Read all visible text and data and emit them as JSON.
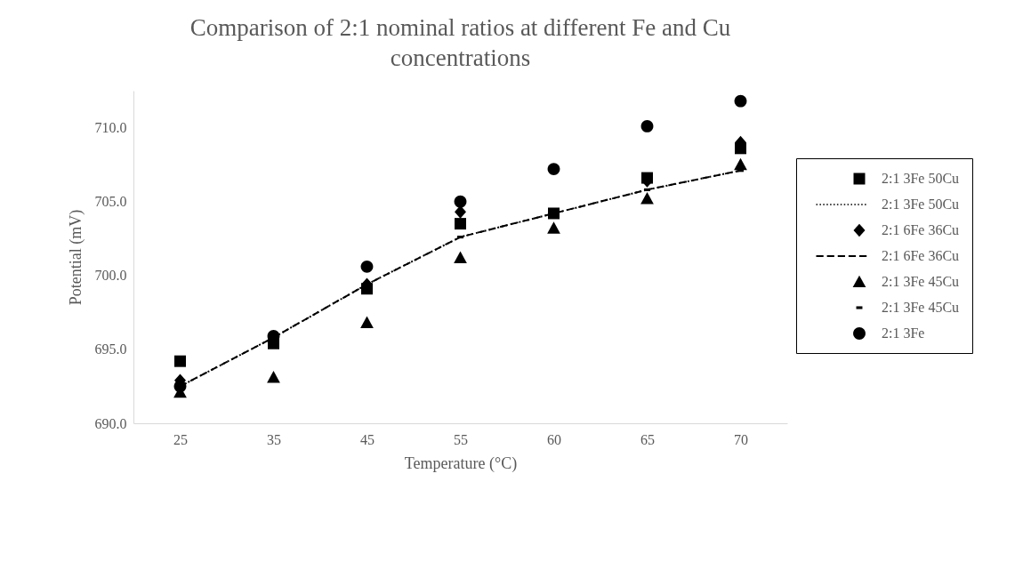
{
  "chart_data": {
    "type": "scatter",
    "title": "Comparison of 2:1 nominal ratios at different Fe and Cu concentrations",
    "xlabel": "Temperature (°C)",
    "ylabel": "Potential (mV)",
    "categories": [
      "25",
      "35",
      "45",
      "55",
      "60",
      "65",
      "70"
    ],
    "ylim": [
      690,
      712.5
    ],
    "yticks": [
      {
        "value": 690,
        "label": "690.0"
      },
      {
        "value": 695,
        "label": "695.0"
      },
      {
        "value": 700,
        "label": "700.0"
      },
      {
        "value": 705,
        "label": "705.0"
      },
      {
        "value": 710,
        "label": "710.0"
      }
    ],
    "grid": false,
    "legend": "right",
    "series": [
      {
        "name": "2:1 3Fe 50Cu",
        "marker": "square",
        "color": "#000000",
        "values": [
          694.2,
          695.4,
          699.1,
          703.5,
          704.2,
          706.6,
          708.6
        ]
      },
      {
        "name": "2:1 3Fe 50Cu",
        "type": "line",
        "marker": "none",
        "line_style": "dotted",
        "color": "#000000",
        "values": [
          692.5,
          695.8,
          699.4,
          702.6,
          704.2,
          705.8,
          707.1
        ]
      },
      {
        "name": "2:1 6Fe 36Cu",
        "marker": "diamond",
        "color": "#000000",
        "values": [
          692.9,
          null,
          699.4,
          704.3,
          null,
          706.4,
          709.0
        ]
      },
      {
        "name": "2:1 6Fe 36Cu",
        "type": "line",
        "marker": "none",
        "line_style": "dashed",
        "color": "#000000",
        "values": [
          692.5,
          695.8,
          699.4,
          702.6,
          704.2,
          705.8,
          707.1
        ]
      },
      {
        "name": "2:1 3Fe 45Cu",
        "marker": "triangle",
        "color": "#000000",
        "values": [
          692.1,
          693.1,
          696.8,
          701.2,
          703.2,
          705.2,
          707.5
        ]
      },
      {
        "name": "2:1 3Fe 45Cu",
        "color": "#000000",
        "values": [
          null,
          null,
          null,
          702.6,
          null,
          705.8,
          707.1
        ]
      },
      {
        "name": "2:1 3Fe",
        "marker": "circle",
        "color": "#000000",
        "values": [
          692.5,
          695.9,
          700.6,
          705.0,
          707.2,
          710.1,
          711.8
        ]
      }
    ]
  }
}
